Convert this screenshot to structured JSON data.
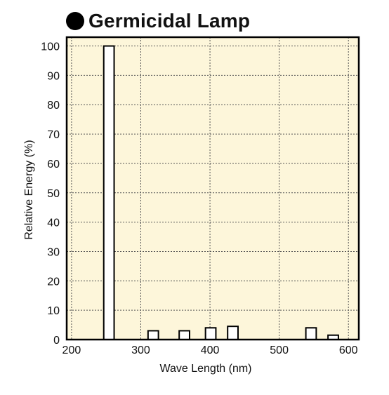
{
  "chart_data": {
    "type": "bar",
    "title": "Germicidal Lamp",
    "xlabel": "Wave Length (nm)",
    "ylabel": "Relative Energy (%)",
    "xlim": [
      193,
      615
    ],
    "ylim": [
      0,
      103
    ],
    "x_ticks": [
      200,
      300,
      400,
      500,
      600
    ],
    "y_ticks": [
      0,
      10,
      20,
      30,
      40,
      50,
      60,
      70,
      80,
      90,
      100
    ],
    "grid": true,
    "bar_width_nm": 15,
    "bars": [
      {
        "x": 254,
        "value": 100
      },
      {
        "x": 318,
        "value": 3
      },
      {
        "x": 363,
        "value": 3
      },
      {
        "x": 401,
        "value": 4
      },
      {
        "x": 433,
        "value": 4.5
      },
      {
        "x": 546,
        "value": 4
      },
      {
        "x": 578,
        "value": 1.5
      }
    ],
    "colors": {
      "plot_background": "#fdf6da",
      "bar_fill": "#ffffff",
      "bar_stroke": "#000000",
      "grid": "#555555",
      "frame": "#000000"
    }
  }
}
